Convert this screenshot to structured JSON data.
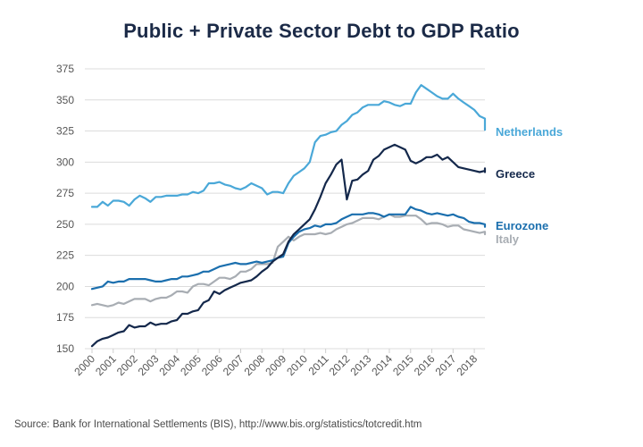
{
  "title": "Public + Private Sector Debt to GDP Ratio",
  "source": "Source: Bank for International Settlements (BIS), http://www.bis.org/statistics/totcredit.htm",
  "chart_data": {
    "type": "line",
    "title": "Public + Private Sector Debt to GDP Ratio",
    "xlabel": "",
    "ylabel": "",
    "xlim": [
      2000,
      2018.5
    ],
    "ylim": [
      150,
      375
    ],
    "yticks": [
      150,
      175,
      200,
      225,
      250,
      275,
      300,
      325,
      350,
      375
    ],
    "xtick_labels": [
      "2000",
      "2001",
      "2002",
      "2003",
      "2004",
      "2005",
      "2006",
      "2007",
      "2008",
      "2009",
      "2010",
      "2011",
      "2012",
      "2013",
      "2014",
      "2015",
      "2016",
      "2017",
      "2018"
    ],
    "grid": "horizontal",
    "legend": "right (direct labels at line ends)",
    "x_start": 2000,
    "x_step": 0.25,
    "series": [
      {
        "name": "Netherlands",
        "color": "#4aa8d8",
        "values": [
          264,
          264,
          268,
          265,
          269,
          269,
          268,
          265,
          270,
          273,
          271,
          268,
          272,
          272,
          273,
          273,
          273,
          274,
          274,
          276,
          275,
          277,
          283,
          283,
          284,
          282,
          281,
          279,
          278,
          280,
          283,
          281,
          279,
          274,
          276,
          276,
          275,
          283,
          289,
          292,
          295,
          300,
          316,
          321,
          322,
          324,
          325,
          330,
          333,
          338,
          340,
          344,
          346,
          346,
          346,
          349,
          348,
          346,
          345,
          347,
          347,
          356,
          362,
          359,
          356,
          353,
          351,
          351,
          355,
          351,
          348,
          345,
          342,
          337,
          335,
          330,
          327,
          326
        ]
      },
      {
        "name": "Greece",
        "color": "#14284b",
        "values": [
          152,
          156,
          158,
          159,
          161,
          163,
          164,
          169,
          167,
          168,
          168,
          171,
          169,
          170,
          170,
          172,
          173,
          178,
          178,
          180,
          181,
          187,
          189,
          196,
          194,
          197,
          199,
          201,
          203,
          204,
          205,
          208,
          212,
          215,
          220,
          223,
          226,
          236,
          242,
          246,
          250,
          254,
          262,
          272,
          283,
          290,
          298,
          302,
          270,
          285,
          286,
          290,
          293,
          302,
          305,
          310,
          312,
          314,
          312,
          310,
          301,
          299,
          301,
          304,
          304,
          306,
          302,
          304,
          300,
          296,
          295,
          294,
          293,
          292,
          293,
          295,
          293,
          292
        ]
      },
      {
        "name": "Eurozone",
        "color": "#1b6fae",
        "values": [
          198,
          199,
          200,
          204,
          203,
          204,
          204,
          206,
          206,
          206,
          206,
          205,
          204,
          204,
          205,
          206,
          206,
          208,
          208,
          209,
          210,
          212,
          212,
          214,
          216,
          217,
          218,
          219,
          218,
          218,
          219,
          220,
          219,
          220,
          221,
          223,
          224,
          235,
          240,
          244,
          246,
          247,
          249,
          248,
          250,
          250,
          251,
          254,
          256,
          258,
          258,
          258,
          259,
          259,
          258,
          256,
          258,
          258,
          258,
          258,
          264,
          262,
          261,
          259,
          258,
          259,
          258,
          257,
          258,
          256,
          255,
          252,
          251,
          251,
          250,
          250,
          249,
          248
        ]
      },
      {
        "name": "Italy",
        "color": "#a8adb3",
        "values": [
          185,
          186,
          185,
          184,
          185,
          187,
          186,
          188,
          190,
          190,
          190,
          188,
          190,
          191,
          191,
          193,
          196,
          196,
          195,
          200,
          202,
          202,
          201,
          204,
          207,
          207,
          206,
          208,
          212,
          212,
          214,
          218,
          218,
          218,
          219,
          232,
          236,
          240,
          237,
          240,
          242,
          242,
          242,
          243,
          242,
          243,
          246,
          248,
          250,
          251,
          253,
          255,
          255,
          255,
          254,
          256,
          258,
          256,
          256,
          257,
          257,
          257,
          254,
          250,
          251,
          251,
          250,
          248,
          249,
          249,
          246,
          245,
          244,
          243,
          244,
          244,
          244,
          242
        ]
      }
    ]
  }
}
